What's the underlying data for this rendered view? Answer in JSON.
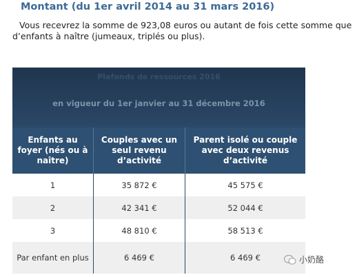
{
  "heading": "Montant (du 1er avril 2014 au 31 mars 2016)",
  "paragraph": "Vous recevrez la somme de 923,08 euros ou autant de fois cette somme que d’enfants à naître (jumeaux, triplés ou plus).",
  "table": {
    "caption": [
      "Plafonds de ressources 2016",
      "en vigueur du 1er janvier au 31 décembre 2016"
    ],
    "headers": [
      "Enfants au foyer (nés ou à naître)",
      "Couples avec un seul revenu d’activité",
      "Parent isolé ou couple avec deux revenus d’activité"
    ],
    "rows": [
      [
        "1",
        "35 872 €",
        "45 575 €"
      ],
      [
        "2",
        "42 341 €",
        "52 044 €"
      ],
      [
        "3",
        "48 810 €",
        "58 513 €"
      ],
      [
        "Par enfant en plus",
        "6 469 €",
        "6 469 €"
      ]
    ]
  },
  "watermark": "小奶酪"
}
